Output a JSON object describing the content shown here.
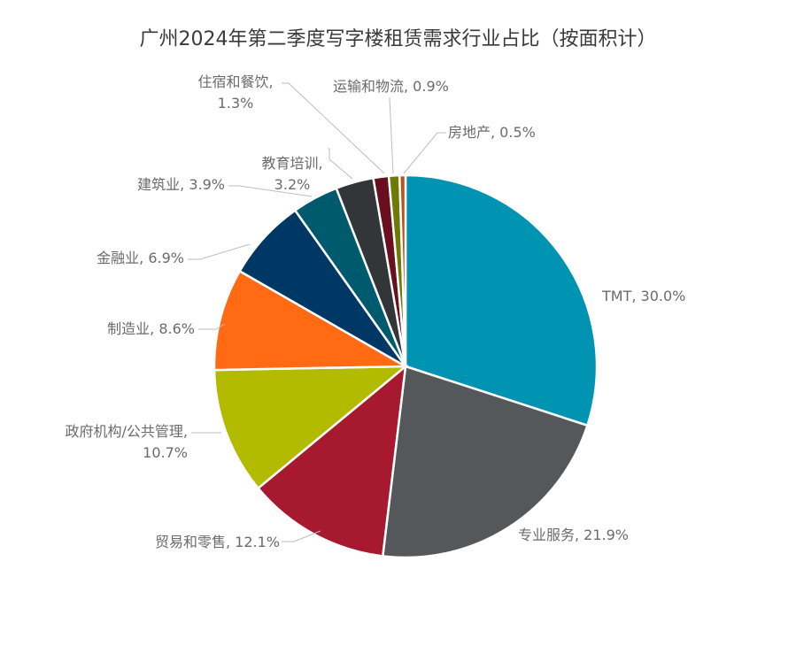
{
  "chart_data": {
    "type": "pie",
    "title": "广州2024年第二季度写字楼租赁需求行业占比（按面积计）",
    "slices": [
      {
        "label": "TMT, 30.0%",
        "value": 30.0,
        "color": "#0093b2"
      },
      {
        "label": "专业服务, 21.9%",
        "value": 21.9,
        "color": "#54585a"
      },
      {
        "label": "贸易和零售, 12.1%",
        "value": 12.1,
        "color": "#a6192e"
      },
      {
        "label": "政府机构/公共管理, 10.7%",
        "value": 10.7,
        "color": "#b3bb00"
      },
      {
        "label": "制造业, 8.6%",
        "value": 8.6,
        "color": "#ff6a13"
      },
      {
        "label": "金融业, 6.9%",
        "value": 6.9,
        "color": "#003865"
      },
      {
        "label": "建筑业, 3.9%",
        "value": 3.9,
        "color": "#005a6e"
      },
      {
        "label": "教育培训, 3.2%",
        "value": 3.2,
        "color": "#333638"
      },
      {
        "label": "住宿和餐饮, 1.3%",
        "value": 1.3,
        "color": "#6a0f1e"
      },
      {
        "label": "运输和物流, 0.9%",
        "value": 0.9,
        "color": "#6d7a05"
      },
      {
        "label": "房地产, 0.5%",
        "value": 0.5,
        "color": "#c0501b"
      }
    ]
  }
}
